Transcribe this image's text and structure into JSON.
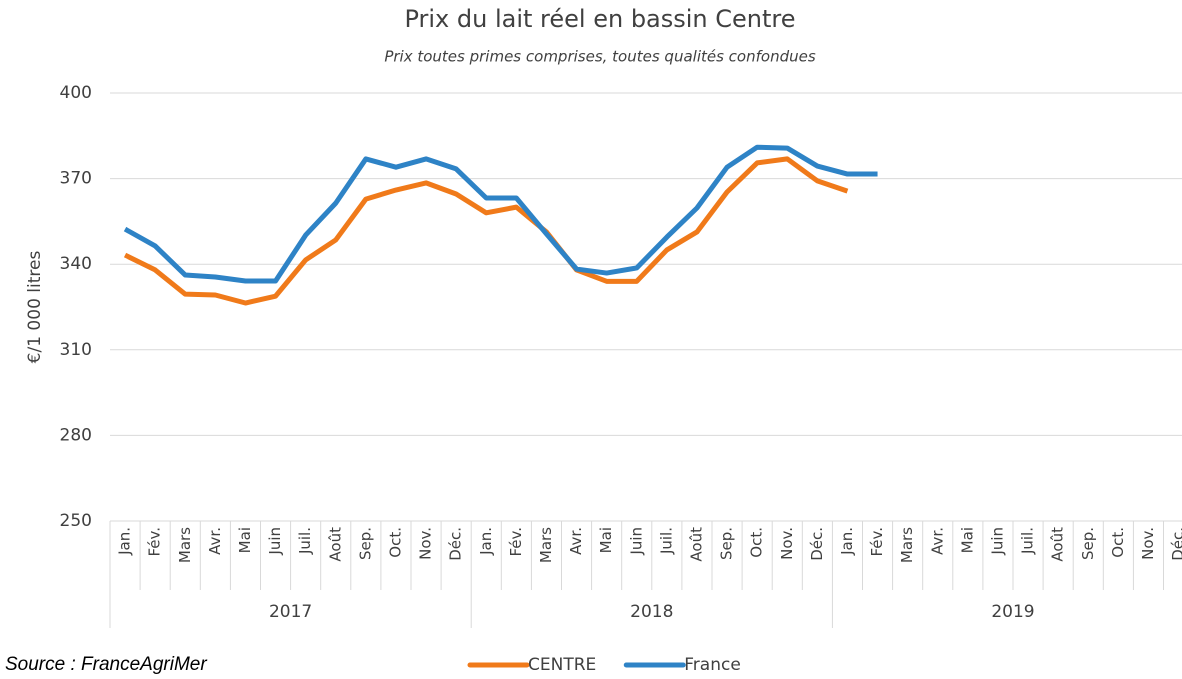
{
  "chart_data": {
    "type": "line",
    "title": "Prix du lait réel en bassin Centre",
    "subtitle": "Prix toutes primes comprises, toutes qualités confondues",
    "y_label": "€/1 000 litres",
    "source": "Source : FranceAgriMer",
    "categories": [
      "Jan.",
      "Fév.",
      "Mars",
      "Avr.",
      "Mai",
      "Juin",
      "Juil.",
      "Août",
      "Sep.",
      "Oct.",
      "Nov.",
      "Déc.",
      "Jan.",
      "Fév.",
      "Mars",
      "Avr.",
      "Mai",
      "Juin",
      "Juil.",
      "Août",
      "Sep.",
      "Oct.",
      "Nov.",
      "Déc.",
      "Jan.",
      "Fév.",
      "Mars",
      "Avr.",
      "Mai",
      "Juin",
      "Juil.",
      "Août",
      "Sep.",
      "Oct.",
      "Nov.",
      "Déc."
    ],
    "groups": [
      "2017",
      "2018",
      "2019"
    ],
    "series": [
      {
        "name": "CENTRE",
        "color": "#f07a1a",
        "values": [
          343.2,
          338,
          329.5,
          329.2,
          326.4,
          328.8,
          341.5,
          348.5,
          362.8,
          366,
          368.5,
          364.6,
          358,
          360,
          351.3,
          338,
          334,
          334,
          345,
          351.3,
          365.3,
          375.5,
          376.9,
          369.2,
          365.6,
          null,
          null,
          null,
          null,
          null,
          null,
          null,
          null,
          null,
          null,
          null
        ]
      },
      {
        "name": "France",
        "color": "#2e83c6",
        "values": [
          352.3,
          346.4,
          336.2,
          335.5,
          334.1,
          334.1,
          350.2,
          361.4,
          376.9,
          374,
          376.9,
          373.4,
          363.2,
          363.2,
          350.6,
          338.3,
          336.9,
          338.7,
          349.5,
          359.7,
          374,
          381,
          380.7,
          374.4,
          371.6,
          371.6,
          null,
          null,
          null,
          null,
          null,
          null,
          null,
          null,
          null,
          null
        ]
      }
    ],
    "ylim": [
      250,
      400
    ],
    "yticks": [
      250,
      280,
      310,
      340,
      370,
      400
    ],
    "grid": true,
    "legend": "bottom"
  }
}
